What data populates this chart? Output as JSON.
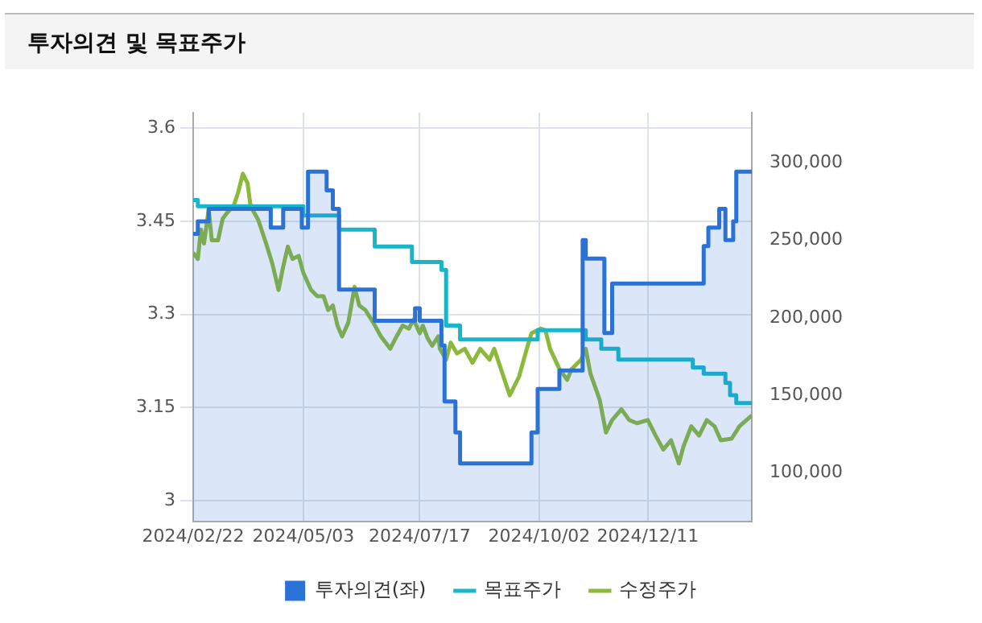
{
  "chart_data": {
    "type": "line",
    "title": "투자의견 및 목표주가",
    "legend": "bottom",
    "grid": true,
    "marker": "none",
    "xlim": [
      "2024-02-22",
      "2025-02-16"
    ],
    "xticks": [
      {
        "value": "2024-02-22",
        "label": "2024/02/22"
      },
      {
        "value": "2024-05-03",
        "label": "2024/05/03"
      },
      {
        "value": "2024-07-17",
        "label": "2024/07/17"
      },
      {
        "value": "2024-10-02",
        "label": "2024/10/02"
      },
      {
        "value": "2024-12-11",
        "label": "2024/12/11"
      }
    ],
    "ylim": [
      2.967,
      3.625
    ],
    "yticks": [
      3,
      3.15,
      3.3,
      3.45,
      3.6
    ],
    "y2lim": [
      68700,
      332400
    ],
    "y2ticks": [
      {
        "value": 100000,
        "label": "100,000"
      },
      {
        "value": 150000,
        "label": "150,000"
      },
      {
        "value": 200000,
        "label": "200,000"
      },
      {
        "value": 250000,
        "label": "250,000"
      },
      {
        "value": 300000,
        "label": "300,000"
      }
    ],
    "series": [
      {
        "name": "투자의견(좌)",
        "type": "area",
        "color": "#2b72d6",
        "x": [
          "2024-02-22",
          "2024-02-25",
          "2024-02-25",
          "2024-03-03",
          "2024-03-03",
          "2024-04-12",
          "2024-04-12",
          "2024-04-20",
          "2024-04-20",
          "2024-05-02",
          "2024-05-02",
          "2024-05-06",
          "2024-05-06",
          "2024-05-18",
          "2024-05-18",
          "2024-05-22",
          "2024-05-22",
          "2024-05-26",
          "2024-05-26",
          "2024-06-18",
          "2024-06-18",
          "2024-07-14",
          "2024-07-14",
          "2024-07-17",
          "2024-07-17",
          "2024-07-31",
          "2024-07-31",
          "2024-08-02",
          "2024-08-02",
          "2024-08-09",
          "2024-08-09",
          "2024-08-12",
          "2024-08-12",
          "2024-09-27",
          "2024-09-27",
          "2024-10-01",
          "2024-10-01",
          "2024-10-15",
          "2024-10-15",
          "2024-10-30",
          "2024-10-30",
          "2024-11-01",
          "2024-11-01",
          "2024-11-13",
          "2024-11-13",
          "2024-11-18",
          "2024-11-18",
          "2025-01-16",
          "2025-01-16",
          "2025-01-19",
          "2025-01-19",
          "2025-01-26",
          "2025-01-26",
          "2025-01-30",
          "2025-01-30",
          "2025-02-04",
          "2025-02-04",
          "2025-02-06",
          "2025-02-06",
          "2025-02-16"
        ],
        "values": [
          3.43,
          3.43,
          3.45,
          3.45,
          3.47,
          3.47,
          3.44,
          3.44,
          3.47,
          3.47,
          3.44,
          3.44,
          3.53,
          3.53,
          3.5,
          3.5,
          3.47,
          3.47,
          3.34,
          3.34,
          3.29,
          3.29,
          3.31,
          3.31,
          3.29,
          3.29,
          3.25,
          3.25,
          3.16,
          3.16,
          3.11,
          3.11,
          3.06,
          3.06,
          3.11,
          3.11,
          3.18,
          3.18,
          3.21,
          3.21,
          3.42,
          3.42,
          3.39,
          3.39,
          3.27,
          3.27,
          3.35,
          3.35,
          3.41,
          3.41,
          3.44,
          3.44,
          3.47,
          3.47,
          3.42,
          3.42,
          3.45,
          3.45,
          3.53,
          3.53
        ]
      },
      {
        "name": "목표주가",
        "type": "step",
        "axis": "y2",
        "color": "#19b6c9",
        "x": [
          "2024-02-22",
          "2024-02-25",
          "2024-05-03",
          "2024-05-26",
          "2024-06-18",
          "2024-07-12",
          "2024-07-31",
          "2024-08-03",
          "2024-08-12",
          "2024-10-01",
          "2024-11-01",
          "2024-11-11",
          "2024-11-22",
          "2025-01-02",
          "2025-01-09",
          "2025-01-16",
          "2025-01-26",
          "2025-01-30",
          "2025-02-02",
          "2025-02-06",
          "2025-02-16"
        ],
        "values": [
          276000,
          272000,
          266000,
          257000,
          246000,
          236000,
          231000,
          195000,
          186000,
          192000,
          186000,
          180000,
          173000,
          173000,
          168000,
          164000,
          164000,
          158000,
          150000,
          145000,
          145000
        ]
      },
      {
        "name": "수정주가",
        "type": "line",
        "axis": "y2",
        "color": "#8cb83c",
        "x": [
          "2024-02-22",
          "2024-02-25",
          "2024-02-27",
          "2024-02-29",
          "2024-03-03",
          "2024-03-05",
          "2024-03-09",
          "2024-03-12",
          "2024-03-15",
          "2024-03-19",
          "2024-03-22",
          "2024-03-25",
          "2024-03-28",
          "2024-03-30",
          "2024-04-04",
          "2024-04-09",
          "2024-04-13",
          "2024-04-17",
          "2024-04-20",
          "2024-04-23",
          "2024-04-26",
          "2024-04-30",
          "2024-05-03",
          "2024-05-08",
          "2024-05-12",
          "2024-05-16",
          "2024-05-19",
          "2024-05-22",
          "2024-05-25",
          "2024-05-28",
          "2024-06-01",
          "2024-06-05",
          "2024-06-08",
          "2024-06-12",
          "2024-06-17",
          "2024-06-22",
          "2024-06-28",
          "2024-07-01",
          "2024-07-06",
          "2024-07-10",
          "2024-07-13",
          "2024-07-17",
          "2024-07-19",
          "2024-07-22",
          "2024-07-25",
          "2024-07-29",
          "2024-07-30",
          "2024-08-03",
          "2024-08-06",
          "2024-08-10",
          "2024-08-15",
          "2024-08-20",
          "2024-08-25",
          "2024-08-31",
          "2024-09-03",
          "2024-09-08",
          "2024-09-13",
          "2024-09-19",
          "2024-09-24",
          "2024-09-27",
          "2024-10-03",
          "2024-10-06",
          "2024-10-09",
          "2024-10-15",
          "2024-10-20",
          "2024-10-23",
          "2024-10-29",
          "2024-11-01",
          "2024-11-04",
          "2024-11-10",
          "2024-11-14",
          "2024-11-18",
          "2024-11-24",
          "2024-11-29",
          "2024-12-04",
          "2024-12-11",
          "2024-12-16",
          "2024-12-21",
          "2024-12-26",
          "2024-12-31",
          "2025-01-03",
          "2025-01-08",
          "2025-01-13",
          "2025-01-18",
          "2025-01-23",
          "2025-01-27",
          "2025-02-03",
          "2025-02-08",
          "2025-02-16"
        ],
        "values": [
          242000,
          238000,
          257000,
          248000,
          270000,
          250000,
          250000,
          264000,
          268000,
          272000,
          281000,
          293000,
          287000,
          272000,
          263000,
          248000,
          235000,
          218000,
          233000,
          246000,
          238000,
          240000,
          229000,
          218000,
          214000,
          214000,
          205000,
          208000,
          195000,
          188000,
          197000,
          220000,
          208000,
          205000,
          197000,
          188000,
          180000,
          186000,
          195000,
          193000,
          199000,
          190000,
          195000,
          187000,
          182000,
          188000,
          180000,
          173000,
          184000,
          177000,
          180000,
          171000,
          180000,
          173000,
          180000,
          165000,
          150000,
          162000,
          180000,
          190000,
          193000,
          192000,
          180000,
          167000,
          160000,
          167000,
          173000,
          180000,
          164000,
          147000,
          126000,
          134000,
          141000,
          134000,
          132000,
          134000,
          124000,
          115000,
          121000,
          106000,
          117000,
          130000,
          124000,
          134000,
          130000,
          121000,
          122000,
          130000,
          137000
        ]
      }
    ]
  }
}
